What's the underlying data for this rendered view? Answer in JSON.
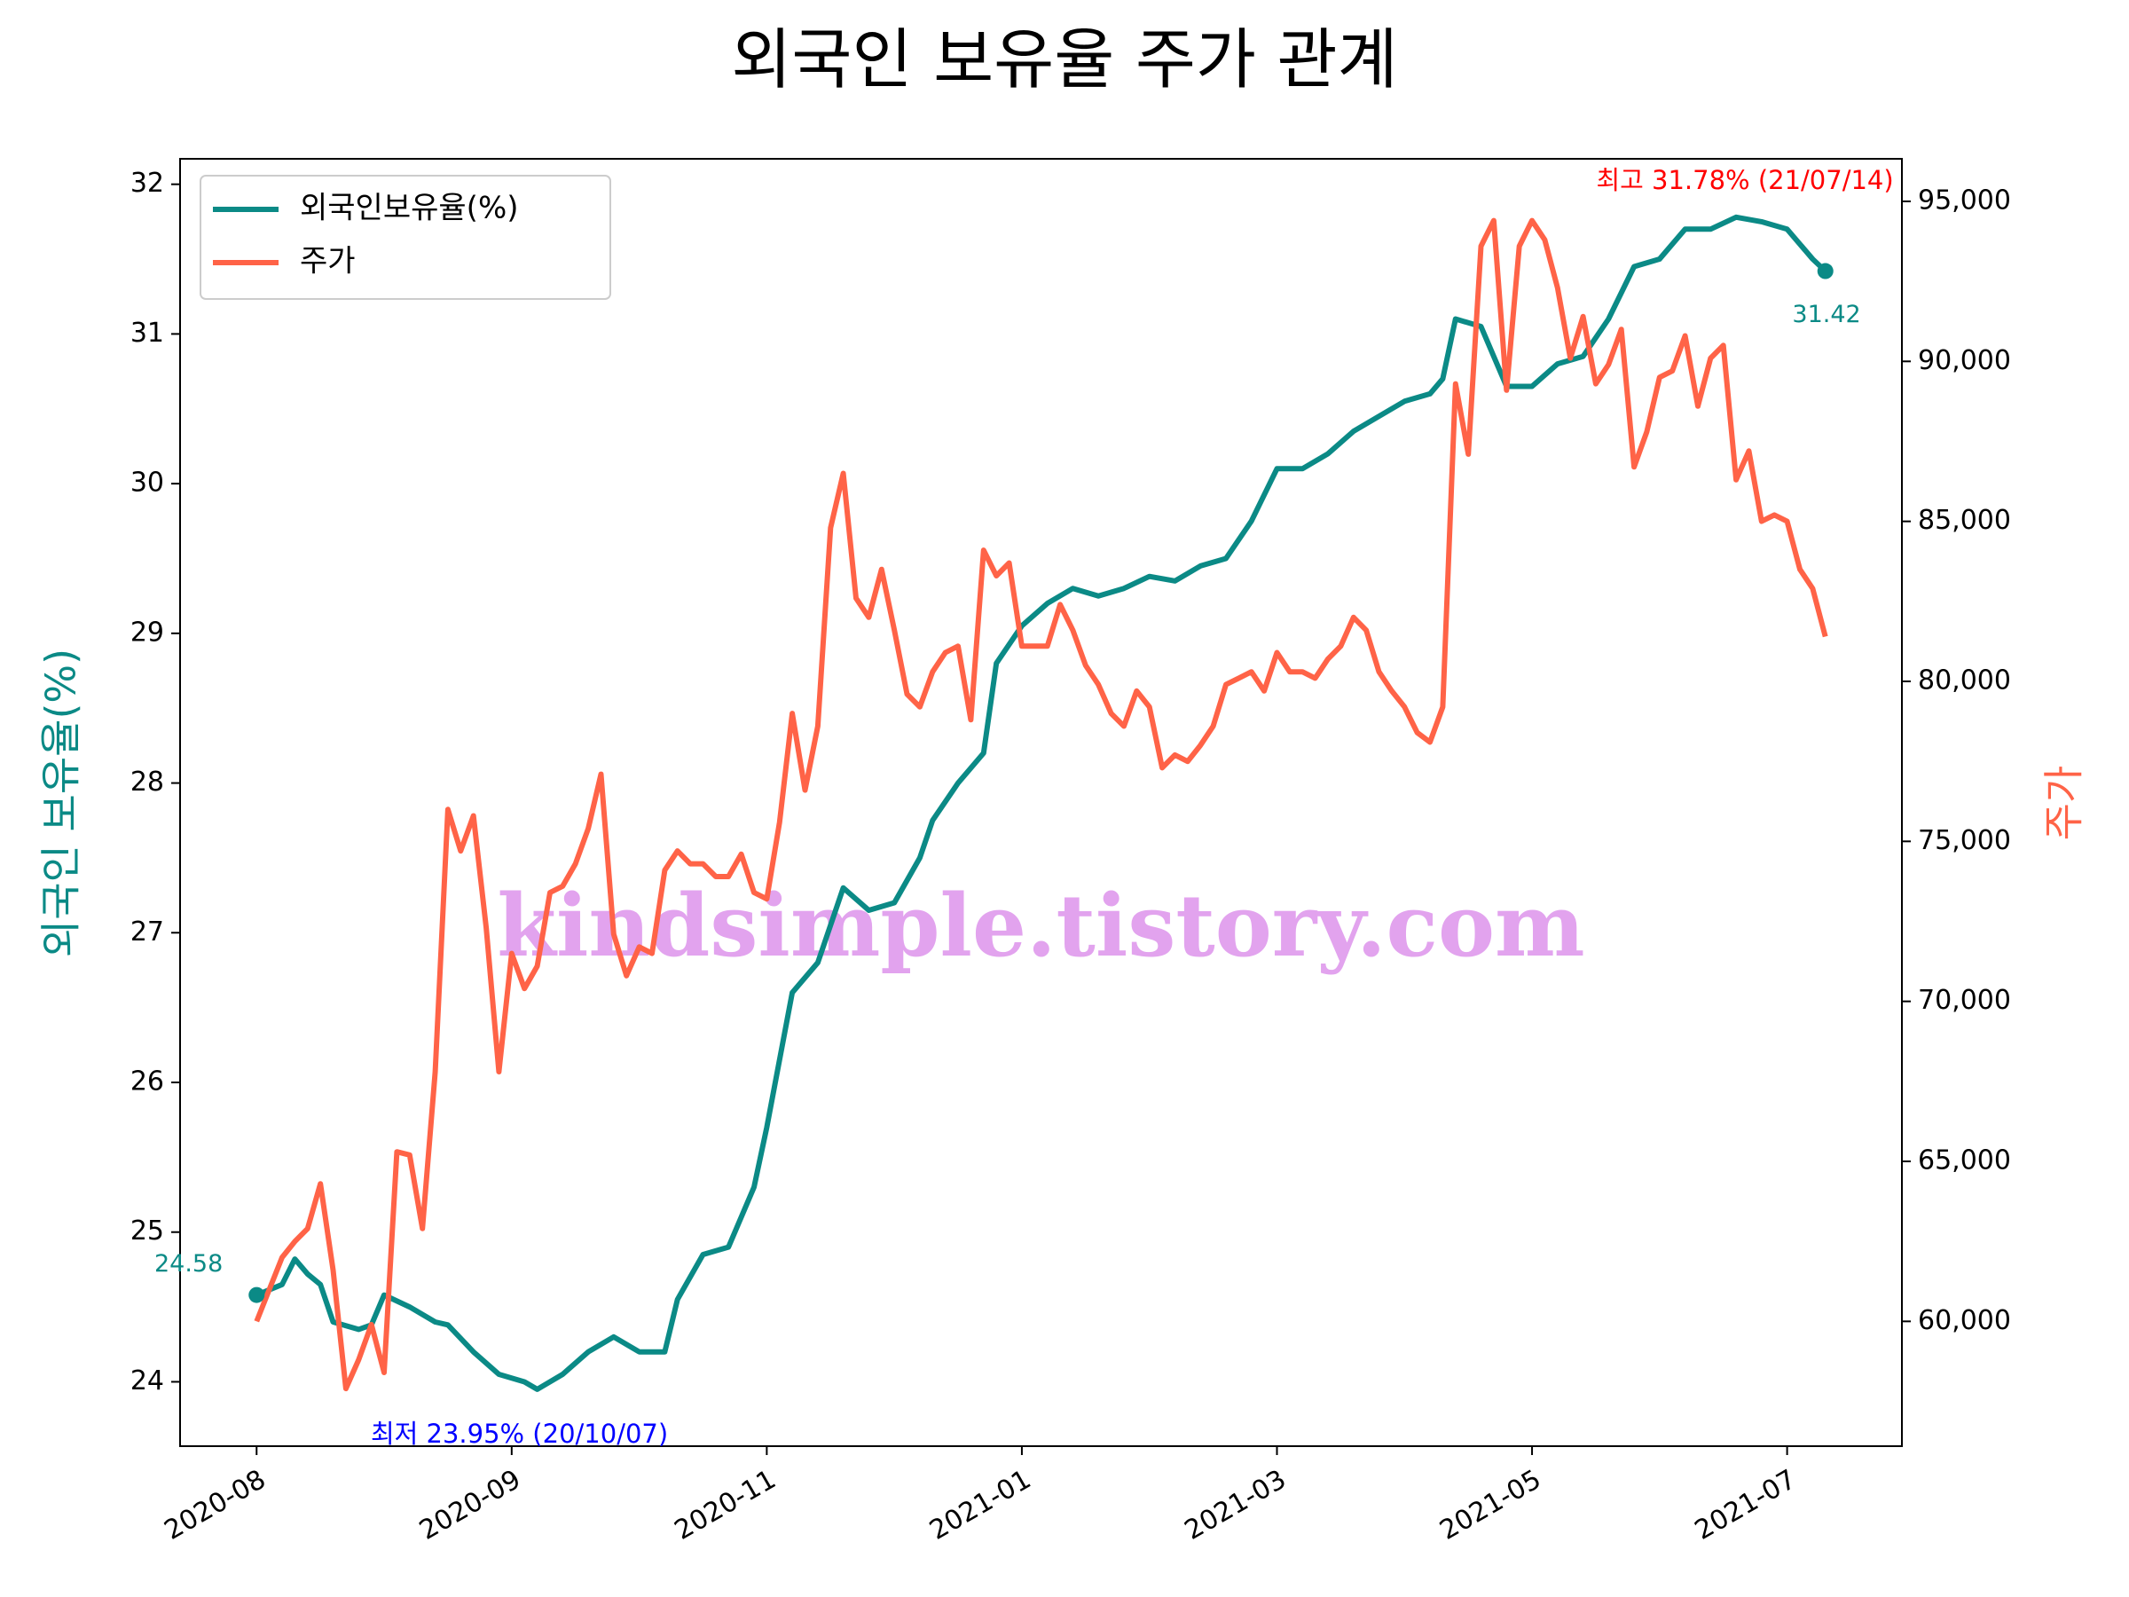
{
  "chart_data": {
    "type": "line",
    "title": "외국인 보유율 주가 관계",
    "ylabel": "외국인 보유율(%)",
    "y2label": "주가",
    "watermark": "kindsimple.tistory.com",
    "legend": "upper left",
    "grid": false,
    "xlim": [
      -12,
      258
    ],
    "xticks": [
      {
        "value": 0,
        "label": "2020-08"
      },
      {
        "value": 40,
        "label": "2020-09"
      },
      {
        "value": 80,
        "label": "2020-11"
      },
      {
        "value": 120,
        "label": "2021-01"
      },
      {
        "value": 160,
        "label": "2021-03"
      },
      {
        "value": 200,
        "label": "2021-05"
      },
      {
        "value": 240,
        "label": "2021-07"
      }
    ],
    "ylim": [
      23.57,
      32.17
    ],
    "yticks": [
      24,
      25,
      26,
      27,
      28,
      29,
      30,
      31,
      32
    ],
    "y2lim": [
      56100,
      96330
    ],
    "y2ticks": [
      {
        "value": 60000,
        "label": "60,000"
      },
      {
        "value": 65000,
        "label": "65,000"
      },
      {
        "value": 70000,
        "label": "70,000"
      },
      {
        "value": 75000,
        "label": "75,000"
      },
      {
        "value": 80000,
        "label": "80,000"
      },
      {
        "value": 85000,
        "label": "85,000"
      },
      {
        "value": 90000,
        "label": "90,000"
      },
      {
        "value": 95000,
        "label": "95,000"
      }
    ],
    "annotations": [
      {
        "text": "최저 23.95% (20/10/07)",
        "color": "#0000ff"
      },
      {
        "text": "최고 31.78% (21/07/14)",
        "color": "#ff0000"
      }
    ],
    "series": [
      {
        "name": "외국인보유율(%)",
        "color": "#0b8a86",
        "x": [
          0,
          4,
          6,
          8,
          10,
          12,
          16,
          18,
          20,
          24,
          28,
          30,
          34,
          38,
          42,
          44,
          48,
          52,
          56,
          60,
          64,
          66,
          70,
          74,
          78,
          80,
          84,
          88,
          92,
          96,
          100,
          104,
          106,
          110,
          114,
          116,
          120,
          124,
          128,
          132,
          136,
          140,
          144,
          148,
          152,
          156,
          160,
          164,
          168,
          172,
          176,
          180,
          184,
          186,
          188,
          192,
          196,
          200,
          204,
          208,
          212,
          216,
          220,
          224,
          228,
          232,
          236,
          240,
          244,
          246
        ],
        "values": [
          24.58,
          24.65,
          24.82,
          24.72,
          24.65,
          24.4,
          24.35,
          24.38,
          24.58,
          24.5,
          24.4,
          24.38,
          24.2,
          24.05,
          24.0,
          23.95,
          24.05,
          24.2,
          24.3,
          24.2,
          24.2,
          24.55,
          24.85,
          24.9,
          25.3,
          25.7,
          26.6,
          26.8,
          27.3,
          27.15,
          27.2,
          27.5,
          27.75,
          28.0,
          28.2,
          28.8,
          29.05,
          29.2,
          29.3,
          29.25,
          29.3,
          29.38,
          29.35,
          29.45,
          29.5,
          29.75,
          30.1,
          30.1,
          30.2,
          30.35,
          30.45,
          30.55,
          30.6,
          30.7,
          31.1,
          31.05,
          30.65,
          30.65,
          30.8,
          30.85,
          31.1,
          31.45,
          31.5,
          31.7,
          31.7,
          31.78,
          31.75,
          31.7,
          31.5,
          31.42
        ]
      },
      {
        "name": "주가",
        "color": "#ff6347",
        "axis": "y2",
        "x": [
          0,
          4,
          6,
          8,
          10,
          12,
          14,
          16,
          18,
          20,
          22,
          24,
          26,
          28,
          30,
          32,
          34,
          36,
          38,
          40,
          42,
          44,
          46,
          48,
          50,
          52,
          54,
          56,
          58,
          60,
          62,
          64,
          66,
          68,
          70,
          72,
          74,
          76,
          78,
          80,
          82,
          84,
          86,
          88,
          90,
          92,
          94,
          96,
          98,
          100,
          102,
          104,
          106,
          108,
          110,
          112,
          114,
          116,
          118,
          120,
          122,
          124,
          126,
          128,
          130,
          132,
          134,
          136,
          138,
          140,
          142,
          144,
          146,
          148,
          150,
          152,
          154,
          156,
          158,
          160,
          162,
          164,
          166,
          168,
          170,
          172,
          174,
          176,
          178,
          180,
          182,
          184,
          186,
          188,
          190,
          192,
          194,
          196,
          198,
          200,
          202,
          204,
          206,
          208,
          210,
          212,
          214,
          216,
          218,
          220,
          222,
          224,
          226,
          228,
          230,
          232,
          234,
          236,
          238,
          240,
          242,
          244,
          246
        ],
        "values": [
          60000,
          62000,
          62500,
          62900,
          64300,
          61600,
          57900,
          58800,
          59900,
          58400,
          65300,
          65200,
          62900,
          67800,
          76000,
          74700,
          75800,
          72300,
          67800,
          71500,
          70400,
          71100,
          73400,
          73600,
          74300,
          75400,
          77100,
          72100,
          70800,
          71700,
          71500,
          74100,
          74700,
          74300,
          74300,
          73900,
          73900,
          74600,
          73400,
          73200,
          75600,
          79000,
          76600,
          78600,
          84800,
          86500,
          82600,
          82000,
          83500,
          81600,
          79600,
          79200,
          80300,
          80900,
          81100,
          78800,
          84100,
          83300,
          83700,
          81100,
          81100,
          81100,
          82400,
          81600,
          80500,
          79900,
          79000,
          78600,
          79700,
          79200,
          77300,
          77700,
          77500,
          78000,
          78600,
          79900,
          80100,
          80300,
          79700,
          80900,
          80300,
          80300,
          80100,
          80700,
          81100,
          82000,
          81600,
          80300,
          79700,
          79200,
          78400,
          78100,
          79200,
          89300,
          87100,
          93600,
          94400,
          89100,
          93600,
          94400,
          93800,
          92300,
          90100,
          91400,
          89300,
          89900,
          91000,
          86700,
          87800,
          89500,
          89700,
          90800,
          88600,
          90100,
          90500,
          86300,
          87200,
          85000,
          85200,
          85000,
          83500,
          82900,
          81400
        ]
      }
    ]
  }
}
